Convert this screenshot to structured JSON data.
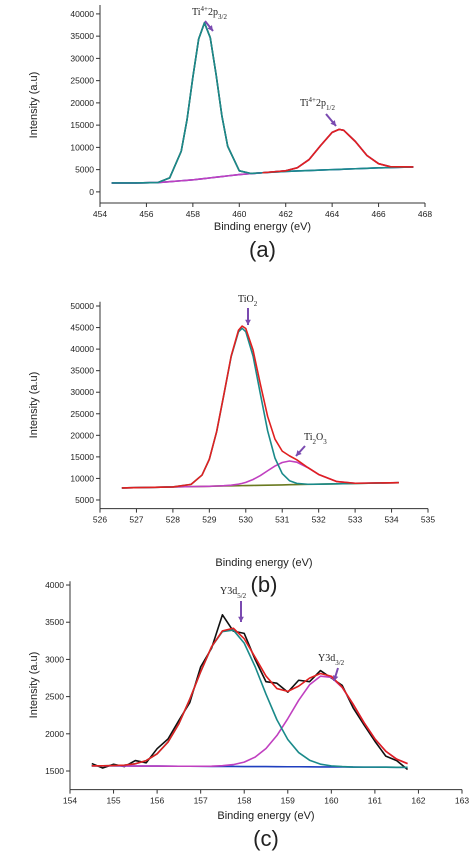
{
  "chart_data": [
    {
      "type": "line",
      "x": [
        454.5,
        455.5,
        456.5,
        457,
        457.5,
        457.75,
        458,
        458.25,
        458.5,
        458.75,
        459,
        459.25,
        459.5,
        460,
        460.5,
        461,
        462,
        462.5,
        463,
        463.5,
        464,
        464.3,
        464.5,
        465,
        465.5,
        466,
        466.5,
        467.5
      ],
      "series": [
        {
          "color": "#111111",
          "values": [
            2000,
            2000,
            2100,
            3140,
            9150,
            16250,
            25800,
            34350,
            38000,
            34650,
            26400,
            17100,
            10250,
            4740,
            4135,
            4300,
            4744,
            5420,
            7230,
            10390,
            13370,
            14050,
            13830,
            11320,
            8180,
            6340,
            5655,
            5600
          ]
        },
        {
          "color": "#1f3fbf",
          "values": [
            2000,
            2000,
            2100,
            2300,
            2500,
            2600,
            2700,
            2850,
            3000,
            3150,
            3300,
            3450,
            3600,
            3900,
            4100,
            4300,
            4600,
            4700,
            4800,
            4900,
            5000,
            5050,
            5100,
            5200,
            5300,
            5400,
            5450,
            5600
          ]
        },
        {
          "color": "#c040c0",
          "values": [
            2000,
            2000,
            2100,
            2300,
            2500,
            2600,
            2700,
            2850,
            3000,
            3150,
            3300,
            3450,
            3600,
            3900,
            4100,
            4300,
            4744,
            5420,
            7230,
            10390,
            13370,
            14050,
            13830,
            11320,
            8180,
            6340,
            5655,
            5600
          ]
        },
        {
          "color": "#1a8a8a",
          "values": [
            2000,
            2000,
            2100,
            3140,
            9150,
            16250,
            25800,
            34350,
            38000,
            34650,
            26400,
            17100,
            10250,
            4740,
            4135,
            4300,
            4600,
            4700,
            4800,
            4900,
            5000,
            5050,
            5100,
            5200,
            5300,
            5400,
            5450,
            5600
          ]
        },
        {
          "color": "#e02020",
          "values": [
            null,
            null,
            null,
            null,
            null,
            null,
            null,
            null,
            null,
            null,
            null,
            null,
            null,
            null,
            null,
            4300,
            4744,
            5420,
            7230,
            10390,
            13370,
            14050,
            13830,
            11320,
            8180,
            6340,
            5655,
            5600
          ]
        }
      ],
      "xlim": [
        454,
        468
      ],
      "xticks": [
        454,
        456,
        458,
        460,
        462,
        464,
        466,
        468
      ],
      "ylim": [
        -2500,
        42000
      ],
      "yticks": [
        0,
        5000,
        10000,
        15000,
        20000,
        25000,
        30000,
        35000,
        40000
      ],
      "xlabel": "Binding energy (eV)",
      "ylabel": "Intensity (a.u)",
      "caption": "(a)",
      "annotations": [
        [
          "Ti",
          "4+",
          "2p",
          "3/2"
        ],
        [
          "Ti",
          "4+",
          "2p",
          "1/2"
        ]
      ]
    },
    {
      "type": "line",
      "x": [
        526.6,
        527.5,
        528,
        528.5,
        528.8,
        529,
        529.2,
        529.4,
        529.6,
        529.8,
        529.9,
        530,
        530.2,
        530.4,
        530.6,
        530.8,
        531,
        531.2,
        531.4,
        531.7,
        532,
        532.5,
        533,
        534.2
      ],
      "series": [
        {
          "color": "#6a7a20",
          "values": [
            7800,
            7940,
            8020,
            8100,
            8150,
            8180,
            8220,
            8250,
            8280,
            8310,
            8330,
            8340,
            8380,
            8410,
            8440,
            8470,
            8500,
            8540,
            8570,
            8620,
            8660,
            8740,
            8820,
            9020
          ]
        },
        {
          "color": "#c040c0",
          "values": [
            7800,
            7940,
            8020,
            8100,
            8150,
            8180,
            8241,
            8311,
            8436,
            8673,
            8855,
            9085,
            9750,
            10670,
            11780,
            12870,
            13700,
            14040,
            13770,
            12510,
            10920,
            9265,
            8881,
            9020
          ]
        },
        {
          "color": "#1a8a8a",
          "values": [
            7800,
            7940,
            8035,
            8620,
            10780,
            14450,
            20820,
            29450,
            38280,
            44010,
            44830,
            44040,
            38380,
            29610,
            21040,
            14740,
            11130,
            9470,
            8850,
            8652,
            8660,
            8740,
            8820,
            9020
          ]
        },
        {
          "color": "#e02020",
          "values": [
            7800,
            7940,
            8035,
            8620,
            10780,
            14450,
            20841,
            29511,
            38436,
            44373,
            45355,
            44785,
            39750,
            31870,
            24380,
            19140,
            16330,
            15230,
            14320,
            12542,
            10920,
            9265,
            8881,
            9020
          ]
        }
      ],
      "xlim": [
        526,
        535
      ],
      "xticks": [
        526,
        527,
        528,
        529,
        530,
        531,
        532,
        533,
        534,
        535
      ],
      "ylim": [
        3000,
        51000
      ],
      "yticks": [
        5000,
        10000,
        15000,
        20000,
        25000,
        30000,
        35000,
        40000,
        45000,
        50000
      ],
      "xlabel": "Binding energy (eV)",
      "ylabel": "Intensity (a.u)",
      "caption": "(b)",
      "annotations": [
        [
          "TiO",
          "2"
        ],
        [
          "Ti",
          "2",
          "O",
          "3"
        ]
      ]
    },
    {
      "type": "line",
      "x": [
        154.5,
        154.75,
        155,
        155.25,
        155.5,
        155.75,
        156,
        156.25,
        156.5,
        156.75,
        157,
        157.25,
        157.5,
        157.75,
        158,
        158.25,
        158.5,
        158.75,
        159,
        159.25,
        159.5,
        159.75,
        160,
        160.25,
        160.5,
        160.75,
        161,
        161.25,
        161.5,
        161.75
      ],
      "series": [
        {
          "color": "#111111",
          "values": [
            1600,
            1540,
            1590,
            1560,
            1640,
            1610,
            1800,
            1930,
            2180,
            2420,
            2900,
            3150,
            3600,
            3380,
            3350,
            3000,
            2700,
            2680,
            2560,
            2720,
            2700,
            2850,
            2750,
            2650,
            2350,
            2120,
            1900,
            1700,
            1640,
            1520
          ]
        },
        {
          "color": "#1f3fbf",
          "values": [
            1570,
            1569,
            1569,
            1568,
            1567,
            1566,
            1566,
            1565,
            1564,
            1564,
            1563,
            1562,
            1562,
            1561,
            1560,
            1560,
            1559,
            1558,
            1557,
            1557,
            1556,
            1555,
            1555,
            1554,
            1553,
            1552,
            1552,
            1551,
            1550,
            1550
          ]
        },
        {
          "color": "#c040c0",
          "values": [
            1570,
            1569,
            1569,
            1568,
            1567,
            1566,
            1566,
            1565,
            1564,
            1564,
            1564,
            1565,
            1571,
            1586,
            1619,
            1687,
            1803,
            1977,
            2204,
            2450,
            2659,
            2774,
            2760,
            2622,
            2398,
            2151,
            1932,
            1766,
            1659,
            1599
          ]
        },
        {
          "color": "#1a8a8a",
          "values": [
            1570,
            1570,
            1573,
            1579,
            1597,
            1640,
            1731,
            1889,
            2136,
            2465,
            2834,
            3168,
            3375,
            3394,
            3219,
            2903,
            2532,
            2189,
            1923,
            1748,
            1645,
            1592,
            1569,
            1559,
            1553,
            1552,
            1552,
            1551,
            1550,
            1550
          ]
        },
        {
          "color": "#e02020",
          "values": [
            1570,
            1570,
            1573,
            1579,
            1597,
            1640,
            1731,
            1889,
            2136,
            2465,
            2835,
            3171,
            3384,
            3419,
            3278,
            3030,
            2776,
            2608,
            2570,
            2641,
            2748,
            2811,
            2774,
            2627,
            2398,
            2151,
            1932,
            1766,
            1659,
            1599
          ]
        }
      ],
      "xlim": [
        154,
        163
      ],
      "xticks": [
        154,
        155,
        156,
        157,
        158,
        159,
        160,
        161,
        162,
        163
      ],
      "ylim": [
        1250,
        4050
      ],
      "yticks": [
        1500,
        2000,
        2500,
        3000,
        3500,
        4000
      ],
      "xlabel": "Binding energy (eV)",
      "ylabel": "Intensity (a.u)",
      "caption": "(c)",
      "annotations": [
        [
          "Y3d",
          "5/2"
        ],
        [
          "Y3d",
          "3/2"
        ]
      ]
    }
  ]
}
